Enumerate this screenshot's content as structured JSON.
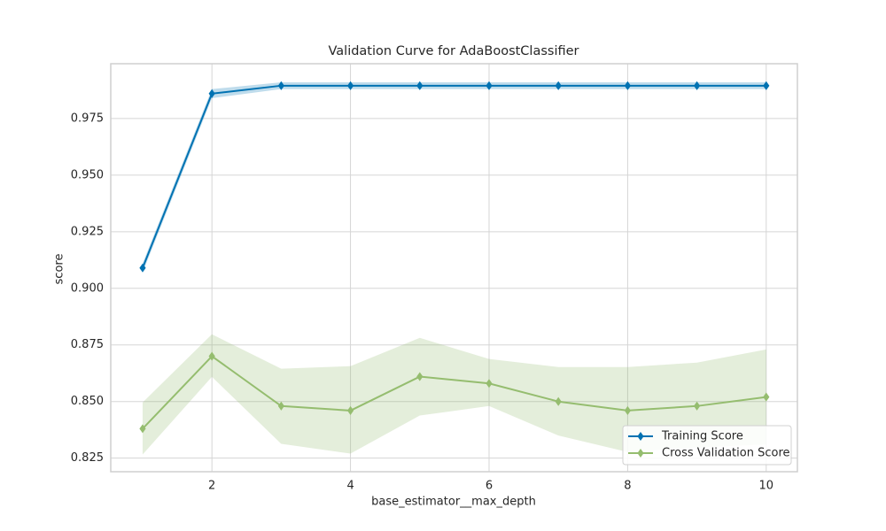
{
  "chart_data": {
    "type": "line",
    "title": "Validation Curve for AdaBoostClassifier",
    "x_label": "base_estimator__max_depth",
    "y_label": "score",
    "x": [
      1,
      2,
      3,
      4,
      5,
      6,
      7,
      8,
      9,
      10
    ],
    "series": [
      {
        "name": "Training Score",
        "color": "#0072b2",
        "values": [
          0.909,
          0.986,
          0.9895,
          0.9895,
          0.9895,
          0.9895,
          0.9895,
          0.9895,
          0.9895,
          0.9895
        ],
        "lower": [
          0.907,
          0.984,
          0.988,
          0.988,
          0.988,
          0.988,
          0.988,
          0.988,
          0.988,
          0.988
        ],
        "upper": [
          0.911,
          0.988,
          0.991,
          0.991,
          0.991,
          0.991,
          0.991,
          0.991,
          0.991,
          0.991
        ]
      },
      {
        "name": "Cross Validation Score",
        "color": "#95bd6f",
        "values": [
          0.838,
          0.87,
          0.848,
          0.846,
          0.861,
          0.858,
          0.85,
          0.846,
          0.848,
          0.852
        ],
        "lower": [
          0.8266,
          0.8609,
          0.8313,
          0.827,
          0.8438,
          0.848,
          0.835,
          0.8277,
          0.8297,
          0.831
        ],
        "upper": [
          0.8496,
          0.8797,
          0.8645,
          0.8656,
          0.8781,
          0.8688,
          0.8652,
          0.8652,
          0.8672,
          0.873
        ]
      }
    ],
    "xlim": [
      0.54,
      10.45
    ],
    "ylim": [
      0.819,
      0.9992
    ],
    "xticks": [
      2,
      4,
      6,
      8,
      10
    ],
    "yticks": [
      0.825,
      {
        "value": 0.85,
        "label": "0.850"
      },
      0.875,
      {
        "value": 0.9,
        "label": "0.900"
      },
      0.925,
      {
        "value": 0.95,
        "label": "0.950"
      },
      0.975
    ],
    "grid": true,
    "legend": "lower right"
  }
}
